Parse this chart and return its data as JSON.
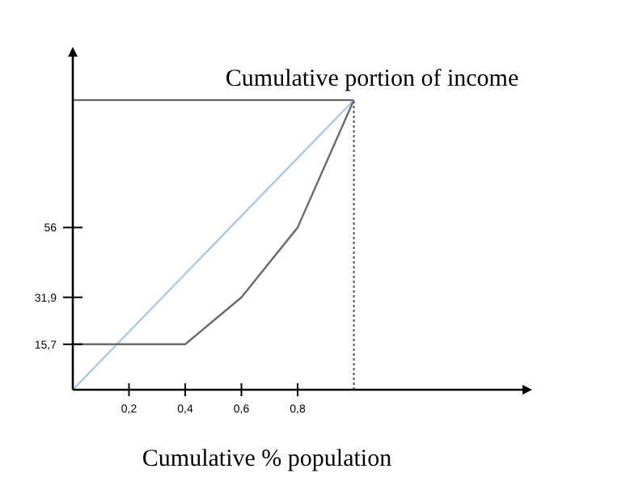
{
  "chart_data": {
    "type": "line",
    "title": "Cumulative portion of income",
    "xlabel": "Cumulative % population",
    "xlim": [
      0,
      1.6
    ],
    "xticks": [
      {
        "value": 0.2,
        "label": "0,2"
      },
      {
        "value": 0.4,
        "label": "0,4"
      },
      {
        "value": 0.6,
        "label": "0,6"
      },
      {
        "value": 0.8,
        "label": "0,8"
      }
    ],
    "ylim": [
      0,
      115
    ],
    "yticks": [
      {
        "value": 15.7,
        "label": "15,7"
      },
      {
        "value": 31.9,
        "label": "31,9"
      },
      {
        "value": 56,
        "label": "56"
      }
    ],
    "grid": false,
    "marker": "none",
    "series": [
      {
        "color": "#a9c8e8",
        "x": [
          0,
          1
        ],
        "values": [
          0,
          100
        ]
      },
      {
        "color": "#6b6b6b",
        "x": [
          0,
          0.4,
          0.6,
          0.8,
          1
        ],
        "values": [
          15.7,
          15.7,
          31.9,
          56,
          100
        ]
      }
    ],
    "ref_lines": [
      {
        "axis": "y",
        "value": 100,
        "color": "#555555",
        "line_style": "solid"
      },
      {
        "axis": "x",
        "value": 1,
        "color": "#555555",
        "line_style": "dotted"
      }
    ]
  }
}
